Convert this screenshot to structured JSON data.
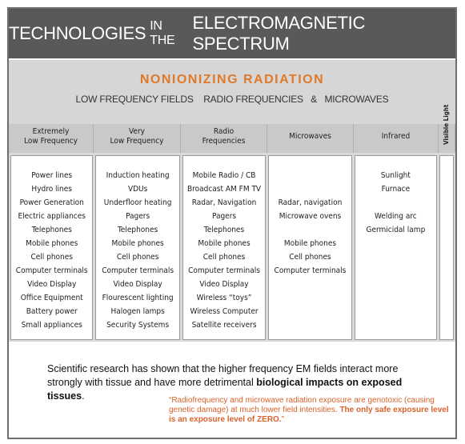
{
  "title": {
    "part1": "TECHNOLOGIES",
    "part2": "IN THE",
    "part3": "ELECTROMAGNETIC SPECTRUM"
  },
  "section": {
    "heading": "NONIONIZING RADIATION",
    "sub_a": "LOW FREQUENCY FIELDS",
    "sub_b": "RADIO FREQUENCIES",
    "sub_c": "&",
    "sub_d": "MICROWAVES"
  },
  "headers": {
    "elf_1": "Extremely",
    "elf_2": "Low Frequency",
    "vlf_1": "Very",
    "vlf_2": "Low Frequency",
    "rf_1": "Radio",
    "rf_2": "Frequencies",
    "mw": "Microwaves",
    "ir": "Infrared",
    "visible": "Visible Light"
  },
  "columns": {
    "elf": [
      "Power lines",
      "Hydro lines",
      "Power Generation",
      "Electric appliances",
      "Telephones",
      "Mobile phones",
      "Cell phones",
      "Computer terminals",
      "Video Display",
      "Office Equipment",
      "Battery power",
      "Small appliances"
    ],
    "vlf": [
      "Induction heating",
      "VDUs",
      "Underfloor heating",
      "Pagers",
      "Telephones",
      "Mobile phones",
      "Cell phones",
      "Computer terminals",
      "Video Display",
      "Flourescent lighting",
      "Halogen lamps",
      "Security Systems"
    ],
    "rf": [
      "Mobile Radio / CB",
      "Broadcast AM FM TV",
      "Radar, Navigation",
      "Pagers",
      "Telephones",
      "Mobile phones",
      "Cell phones",
      "Computer terminals",
      "Video Display",
      "Wireless  “toys”",
      "Wireless Computer",
      "Satellite receivers"
    ],
    "mw": [
      "",
      "",
      "Radar, navigation",
      "Microwave ovens",
      "",
      "Mobile phones",
      "Cell phones",
      "Computer terminals"
    ],
    "ir": [
      "Sunlight",
      "Furnace",
      "",
      "Welding arc",
      "Germicidal lamp"
    ]
  },
  "research": {
    "text": "Scientific research has shown that the higher frequency EM fields interact more strongly with tissue and have more detrimental",
    "bold": "biological impacts on exposed tissues",
    "end": "."
  },
  "quote": {
    "text": "“Radiofrequency and microwave radiation exposure are genotoxic (causing genetic damage) at much lower field intensities.",
    "bold": "The only safe exposure level is an exposure level of ZERO.",
    "end": "”"
  },
  "colors": {
    "title_bg": "#595959",
    "accent": "#e07a2a",
    "quote": "#d9622a",
    "band": "#d6d6d6"
  }
}
